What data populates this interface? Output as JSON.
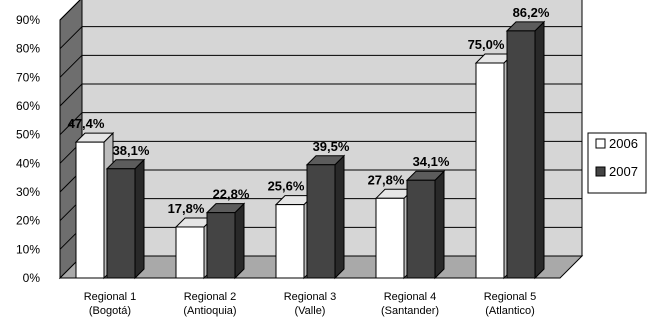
{
  "chart_data": {
    "type": "bar",
    "title": "",
    "xlabel": "",
    "ylabel": "",
    "ylim": [
      0,
      90
    ],
    "y_ticks": [
      "0%",
      "10%",
      "20%",
      "30%",
      "40%",
      "50%",
      "60%",
      "70%",
      "80%",
      "90%"
    ],
    "grid": true,
    "legend_position": "right",
    "categories": [
      [
        "Regional 1",
        "(Bogotá)"
      ],
      [
        "Regional 2",
        "(Antioquia)"
      ],
      [
        "Regional 3",
        "(Valle)"
      ],
      [
        "Regional 4",
        "(Santander)"
      ],
      [
        "Regional 5",
        "(Atlantico)"
      ]
    ],
    "series": [
      {
        "name": "2006",
        "color": "#ffffff",
        "values": [
          47.4,
          17.8,
          25.6,
          27.8,
          75.0
        ],
        "labels": [
          "47,4%",
          "17,8%",
          "25,6%",
          "27,8%",
          "75,0%"
        ]
      },
      {
        "name": "2007",
        "color": "#444444",
        "values": [
          38.1,
          22.8,
          39.5,
          34.1,
          86.2
        ],
        "labels": [
          "38,1%",
          "22,8%",
          "39,5%",
          "34,1%",
          "86,2%"
        ]
      }
    ]
  }
}
